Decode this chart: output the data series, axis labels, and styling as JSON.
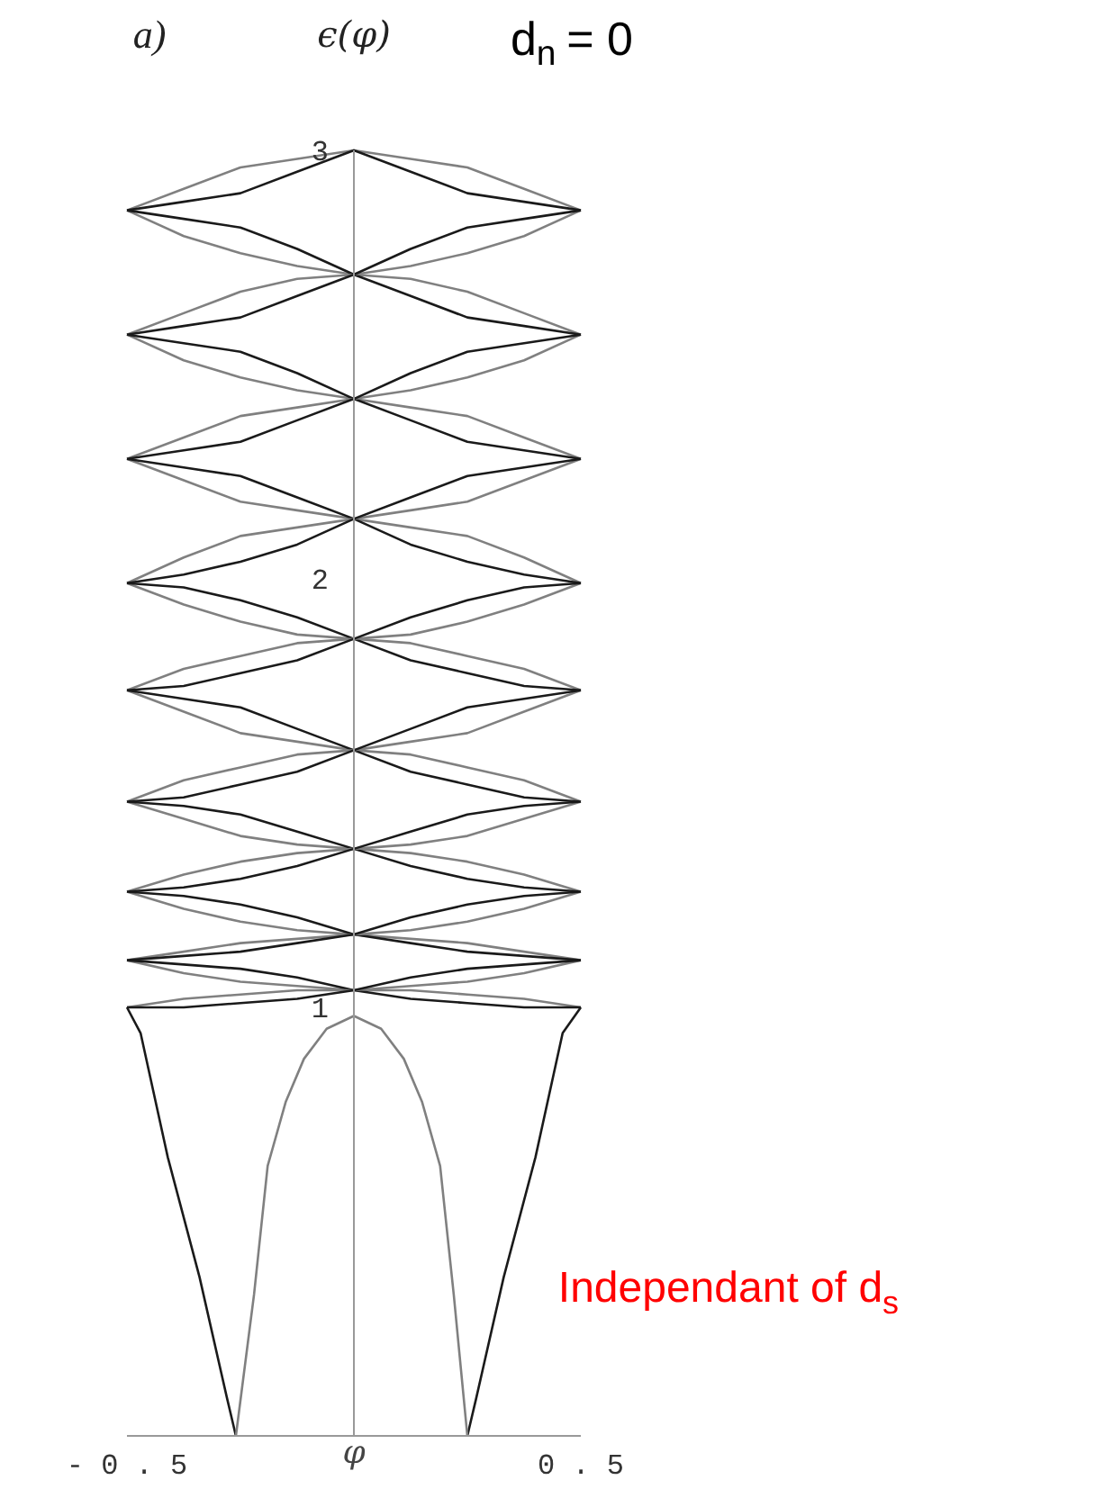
{
  "chart_data": {
    "type": "line",
    "title": "d$_{n}$ = 0",
    "xlabel": "φ",
    "ylabel": "ϵ(φ)",
    "annotations": [
      "a)",
      "Independant of d$_{s}$"
    ],
    "xlim": [
      -0.5,
      0.5
    ],
    "ylim": [
      0,
      3.0
    ],
    "xticks": [
      -0.5,
      0.5
    ],
    "yticks": [
      1,
      2,
      3
    ],
    "x": [
      -0.5,
      -0.375,
      -0.25,
      -0.125,
      0,
      0.125,
      0.25,
      0.375,
      0.5
    ],
    "series": [
      {
        "color": "#808080",
        "values": [
          2.86,
          2.91,
          2.96,
          2.98,
          3.0,
          2.98,
          2.96,
          2.91,
          2.86
        ]
      },
      {
        "color": "#1a1a1a",
        "values": [
          2.86,
          2.88,
          2.9,
          2.95,
          3.0,
          2.95,
          2.9,
          2.88,
          2.86
        ]
      },
      {
        "color": "#808080",
        "values": [
          2.86,
          2.8,
          2.76,
          2.73,
          2.71,
          2.7,
          2.67,
          2.62,
          2.57
        ]
      },
      {
        "color": "#1a1a1a",
        "values": [
          2.86,
          2.84,
          2.82,
          2.77,
          2.71,
          2.66,
          2.61,
          2.59,
          2.57
        ]
      },
      {
        "color": "#808080",
        "values": [
          2.57,
          2.62,
          2.67,
          2.7,
          2.71,
          2.73,
          2.76,
          2.8,
          2.86
        ]
      },
      {
        "color": "#1a1a1a",
        "values": [
          2.57,
          2.59,
          2.61,
          2.66,
          2.71,
          2.77,
          2.82,
          2.84,
          2.86
        ]
      },
      {
        "color": "#808080",
        "values": [
          2.57,
          2.51,
          2.47,
          2.44,
          2.42,
          2.4,
          2.38,
          2.33,
          2.28
        ]
      },
      {
        "color": "#1a1a1a",
        "values": [
          2.57,
          2.55,
          2.53,
          2.48,
          2.42,
          2.37,
          2.32,
          2.3,
          2.28
        ]
      },
      {
        "color": "#808080",
        "values": [
          2.28,
          2.33,
          2.38,
          2.4,
          2.42,
          2.44,
          2.47,
          2.51,
          2.57
        ]
      },
      {
        "color": "#1a1a1a",
        "values": [
          2.28,
          2.3,
          2.32,
          2.37,
          2.42,
          2.48,
          2.53,
          2.55,
          2.57
        ]
      },
      {
        "color": "#808080",
        "values": [
          2.28,
          2.23,
          2.18,
          2.16,
          2.14,
          2.12,
          2.1,
          2.05,
          1.99
        ]
      },
      {
        "color": "#1a1a1a",
        "values": [
          2.28,
          2.26,
          2.24,
          2.19,
          2.14,
          2.08,
          2.04,
          2.01,
          1.99
        ]
      },
      {
        "color": "#808080",
        "values": [
          1.99,
          2.05,
          2.1,
          2.12,
          2.14,
          2.16,
          2.18,
          2.23,
          2.28
        ]
      },
      {
        "color": "#1a1a1a",
        "values": [
          1.99,
          2.01,
          2.04,
          2.08,
          2.14,
          2.19,
          2.24,
          2.26,
          2.28
        ]
      },
      {
        "color": "#808080",
        "values": [
          1.99,
          1.94,
          1.9,
          1.87,
          1.86,
          1.85,
          1.82,
          1.79,
          1.74
        ]
      },
      {
        "color": "#1a1a1a",
        "values": [
          1.99,
          1.98,
          1.95,
          1.91,
          1.86,
          1.81,
          1.78,
          1.75,
          1.74
        ]
      },
      {
        "color": "#808080",
        "values": [
          1.74,
          1.79,
          1.82,
          1.85,
          1.86,
          1.87,
          1.9,
          1.94,
          1.99
        ]
      },
      {
        "color": "#1a1a1a",
        "values": [
          1.74,
          1.75,
          1.78,
          1.81,
          1.86,
          1.91,
          1.95,
          1.98,
          1.99
        ]
      },
      {
        "color": "#808080",
        "values": [
          1.74,
          1.69,
          1.64,
          1.62,
          1.6,
          1.59,
          1.56,
          1.53,
          1.48
        ]
      },
      {
        "color": "#1a1a1a",
        "values": [
          1.74,
          1.72,
          1.7,
          1.65,
          1.6,
          1.55,
          1.52,
          1.49,
          1.48
        ]
      },
      {
        "color": "#808080",
        "values": [
          1.48,
          1.53,
          1.56,
          1.59,
          1.6,
          1.62,
          1.64,
          1.69,
          1.74
        ]
      },
      {
        "color": "#1a1a1a",
        "values": [
          1.48,
          1.49,
          1.52,
          1.55,
          1.6,
          1.65,
          1.7,
          1.72,
          1.74
        ]
      },
      {
        "color": "#808080",
        "values": [
          1.48,
          1.44,
          1.4,
          1.38,
          1.37,
          1.36,
          1.34,
          1.31,
          1.27
        ]
      },
      {
        "color": "#1a1a1a",
        "values": [
          1.48,
          1.47,
          1.45,
          1.41,
          1.37,
          1.33,
          1.3,
          1.28,
          1.27
        ]
      },
      {
        "color": "#808080",
        "values": [
          1.27,
          1.31,
          1.34,
          1.36,
          1.37,
          1.38,
          1.4,
          1.44,
          1.48
        ]
      },
      {
        "color": "#1a1a1a",
        "values": [
          1.27,
          1.28,
          1.3,
          1.33,
          1.37,
          1.41,
          1.45,
          1.47,
          1.48
        ]
      },
      {
        "color": "#808080",
        "values": [
          1.27,
          1.23,
          1.2,
          1.18,
          1.17,
          1.16,
          1.15,
          1.13,
          1.11
        ]
      },
      {
        "color": "#1a1a1a",
        "values": [
          1.27,
          1.26,
          1.24,
          1.21,
          1.17,
          1.15,
          1.13,
          1.12,
          1.11
        ]
      },
      {
        "color": "#808080",
        "values": [
          1.11,
          1.13,
          1.15,
          1.16,
          1.17,
          1.18,
          1.2,
          1.23,
          1.27
        ]
      },
      {
        "color": "#1a1a1a",
        "values": [
          1.11,
          1.12,
          1.13,
          1.15,
          1.17,
          1.21,
          1.24,
          1.26,
          1.27
        ]
      },
      {
        "color": "#808080",
        "values": [
          1.11,
          1.08,
          1.06,
          1.05,
          1.04,
          1.04,
          1.03,
          1.02,
          1.0
        ]
      },
      {
        "color": "#1a1a1a",
        "values": [
          1.11,
          1.1,
          1.09,
          1.07,
          1.04,
          1.02,
          1.01,
          1.0,
          1.0
        ]
      },
      {
        "color": "#808080",
        "values": [
          1.0,
          1.02,
          1.03,
          1.04,
          1.04,
          1.05,
          1.06,
          1.08,
          1.11
        ]
      },
      {
        "color": "#1a1a1a",
        "values": [
          1.0,
          1.0,
          1.01,
          1.02,
          1.04,
          1.07,
          1.09,
          1.1,
          1.11
        ]
      },
      {
        "color": "#1a1a1a",
        "x": [
          -0.5,
          -0.47,
          -0.41,
          -0.34,
          -0.28,
          -0.26
        ],
        "values": [
          1.0,
          0.94,
          0.65,
          0.37,
          0.09,
          0
        ]
      },
      {
        "color": "#1a1a1a",
        "x": [
          0.25,
          0.27,
          0.33,
          0.4,
          0.46,
          0.5
        ],
        "values": [
          0,
          0.09,
          0.37,
          0.65,
          0.94,
          1.0
        ]
      },
      {
        "color": "#808080",
        "x": [
          -0.26,
          -0.22,
          -0.19,
          -0.15,
          -0.11,
          -0.06,
          0,
          0.06,
          0.11,
          0.15,
          0.19,
          0.22,
          0.25
        ],
        "values": [
          0,
          0.33,
          0.63,
          0.78,
          0.88,
          0.95,
          0.98,
          0.95,
          0.88,
          0.78,
          0.63,
          0.33,
          0
        ]
      }
    ]
  }
}
